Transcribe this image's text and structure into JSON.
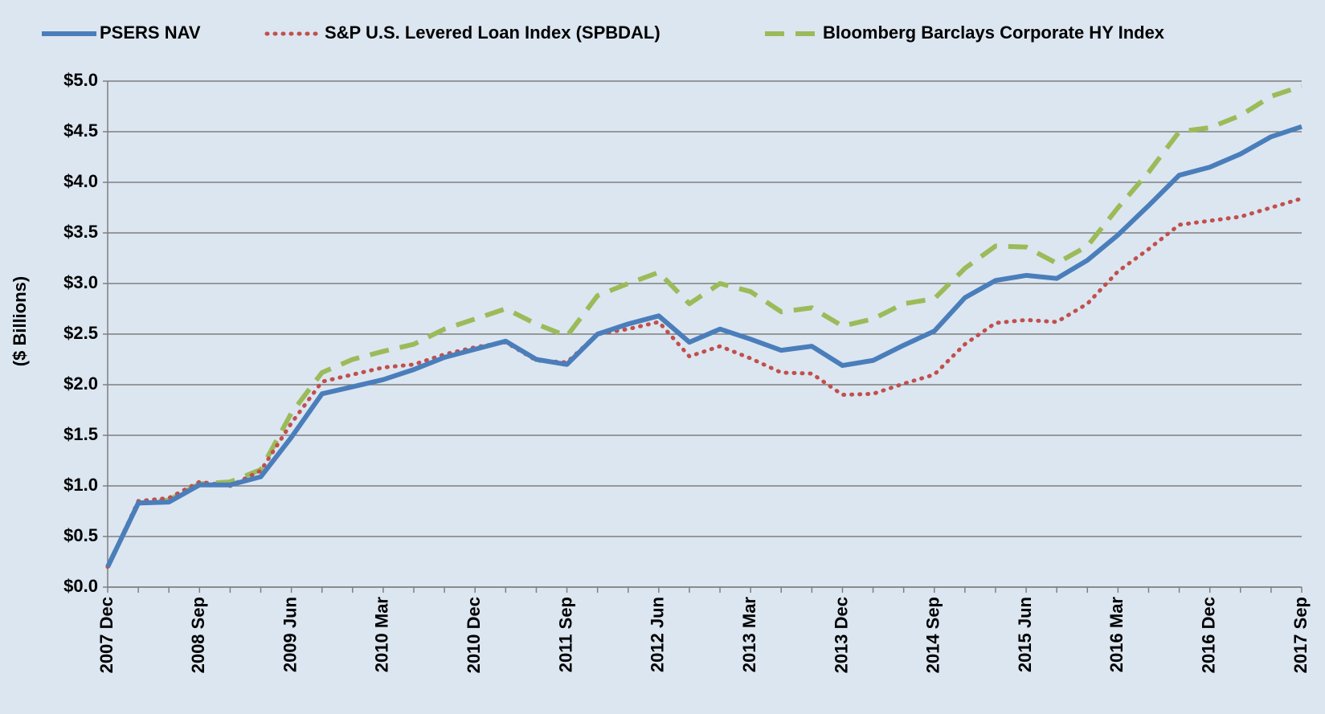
{
  "chart_data": {
    "type": "line",
    "y_label": "($ Billions)",
    "categories": [
      "2007 Dec",
      null,
      null,
      "2008 Sep",
      null,
      null,
      "2009 Jun",
      null,
      null,
      "2010 Mar",
      null,
      null,
      "2010 Dec",
      null,
      null,
      "2011 Sep",
      null,
      null,
      "2012 Jun",
      null,
      null,
      "2013 Mar",
      null,
      null,
      "2013 Dec",
      null,
      null,
      "2014 Sep",
      null,
      null,
      "2015 Jun",
      null,
      null,
      "2016 Mar",
      null,
      null,
      "2016 Dec",
      null,
      null,
      "2017 Sep"
    ],
    "series": [
      {
        "name": "PSERS NAV",
        "color": "#4a7ebb",
        "style": "solid",
        "values": [
          0.2,
          0.83,
          0.84,
          1.01,
          1.01,
          1.09,
          1.48,
          1.91,
          1.98,
          2.05,
          2.15,
          2.27,
          2.35,
          2.43,
          2.25,
          2.2,
          2.5,
          2.6,
          2.68,
          2.42,
          2.55,
          2.45,
          2.34,
          2.38,
          2.19,
          2.24,
          2.39,
          2.53,
          2.86,
          3.03,
          3.08,
          3.05,
          3.23,
          3.48,
          3.77,
          4.07,
          4.15,
          4.28,
          4.45,
          4.55
        ]
      },
      {
        "name": "S&P U.S. Levered Loan Index (SPBDAL)",
        "color": "#c0504d",
        "style": "dotted",
        "values": [
          0.2,
          0.85,
          0.88,
          1.04,
          1.0,
          1.15,
          1.62,
          2.03,
          2.1,
          2.17,
          2.2,
          2.3,
          2.37,
          2.42,
          2.24,
          2.22,
          2.5,
          2.55,
          2.62,
          2.28,
          2.38,
          2.26,
          2.12,
          2.11,
          1.9,
          1.91,
          2.01,
          2.1,
          2.4,
          2.61,
          2.64,
          2.62,
          2.8,
          3.12,
          3.34,
          3.58,
          3.62,
          3.66,
          3.75,
          3.84
        ]
      },
      {
        "name": "Bloomberg Barclays Corporate HY Index",
        "color": "#9bbb59",
        "style": "dashed",
        "values": [
          0.2,
          0.83,
          0.86,
          1.02,
          1.04,
          1.16,
          1.72,
          2.12,
          2.25,
          2.33,
          2.4,
          2.55,
          2.65,
          2.75,
          2.6,
          2.48,
          2.88,
          3.0,
          3.11,
          2.8,
          3.0,
          2.92,
          2.72,
          2.76,
          2.58,
          2.65,
          2.8,
          2.85,
          3.15,
          3.37,
          3.36,
          3.2,
          3.37,
          3.75,
          4.1,
          4.5,
          4.54,
          4.66,
          4.85,
          4.95
        ]
      }
    ],
    "ylim": [
      0,
      5
    ],
    "yticks": [
      {
        "value": 0,
        "label": "$0.0"
      },
      {
        "value": 0.5,
        "label": "$0.5"
      },
      {
        "value": 1,
        "label": "$1.0"
      },
      {
        "value": 1.5,
        "label": "$1.5"
      },
      {
        "value": 2,
        "label": "$2.0"
      },
      {
        "value": 2.5,
        "label": "$2.5"
      },
      {
        "value": 3,
        "label": "$3.0"
      },
      {
        "value": 3.5,
        "label": "$3.5"
      },
      {
        "value": 4,
        "label": "$4.0"
      },
      {
        "value": 4.5,
        "label": "$4.5"
      },
      {
        "value": 5,
        "label": "$5.0"
      }
    ],
    "grid": true,
    "legend": "top"
  }
}
